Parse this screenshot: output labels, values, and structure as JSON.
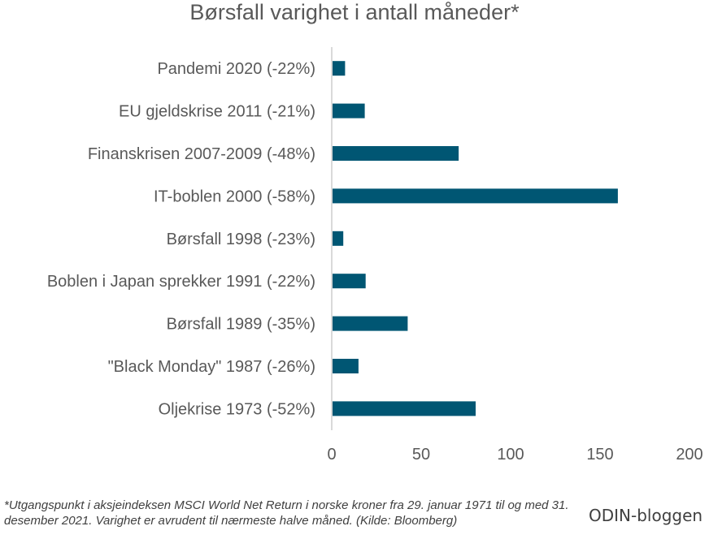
{
  "chart_data": {
    "type": "bar",
    "orientation": "horizontal",
    "title": "Børsfall varighet i antall måneder*",
    "categories": [
      "Pandemi 2020 (-22%)",
      "EU gjeldskrise 2011 (-21%)",
      "Finanskrisen 2007-2009 (-48%)",
      "IT-boblen 2000 (-58%)",
      "Børsfall 1998 (-23%)",
      "Boblen i Japan sprekker 1991 (-22%)",
      "Børsfall 1989 (-35%)",
      "\"Black Monday\" 1987 (-26%)",
      "Oljekrise 1973 (-52%)"
    ],
    "values": [
      7,
      18,
      70.5,
      159.5,
      6,
      18.5,
      42,
      14.5,
      80
    ],
    "xlim": [
      0,
      200
    ],
    "xticks": [
      "0",
      "50",
      "100",
      "150",
      "200"
    ],
    "xlabel": "",
    "ylabel": "",
    "grid": false,
    "bar_color": "#005673"
  },
  "footnote": "*Utgangspunkt i aksjeindeksen MSCI World Net Return i norske kroner fra 29. januar 1971 til og med 31. desember 2021. Varighet er avrudent til nærmeste halve måned. (Kilde: Bloomberg)",
  "brand": "ODIN-bloggen"
}
